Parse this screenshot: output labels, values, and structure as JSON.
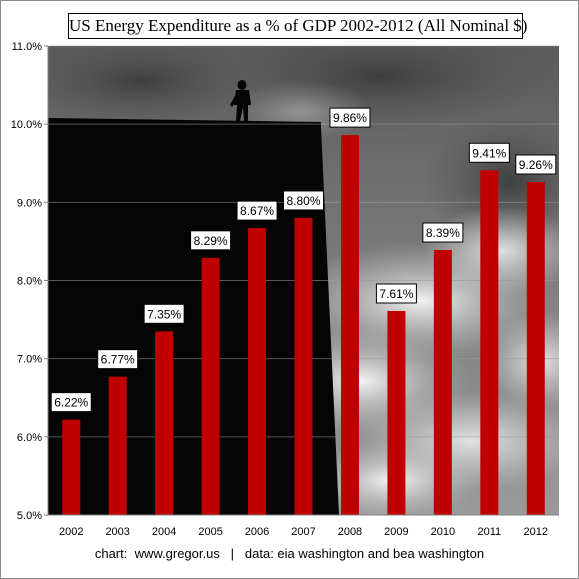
{
  "chart_data": {
    "type": "bar",
    "title": "US Energy Expenditure as a % of GDP 2002-2012 (All Nominal $)",
    "categories": [
      "2002",
      "2003",
      "2004",
      "2005",
      "2006",
      "2007",
      "2008",
      "2009",
      "2010",
      "2011",
      "2012"
    ],
    "values": [
      6.22,
      6.77,
      7.35,
      8.29,
      8.67,
      8.8,
      9.86,
      7.61,
      8.39,
      9.41,
      9.26
    ],
    "data_labels": [
      "6.22%",
      "6.77%",
      "7.35%",
      "8.29%",
      "8.67%",
      "8.80%",
      "9.86%",
      "7.61%",
      "8.39%",
      "9.41%",
      "9.26%"
    ],
    "ylim": [
      5.0,
      11.0
    ],
    "yticks": [
      5.0,
      6.0,
      7.0,
      8.0,
      9.0,
      10.0,
      11.0
    ],
    "ytick_labels": [
      "5.0%",
      "6.0%",
      "7.0%",
      "8.0%",
      "9.0%",
      "10.0%",
      "11.0%"
    ],
    "xlabel": "",
    "ylabel": "",
    "grid": true,
    "bar_color": "#c00000",
    "background": "stormy-sky-photo-with-building-silhouette"
  },
  "footer": "chart:  www.gregor.us   |   data: eia washington and bea washington"
}
